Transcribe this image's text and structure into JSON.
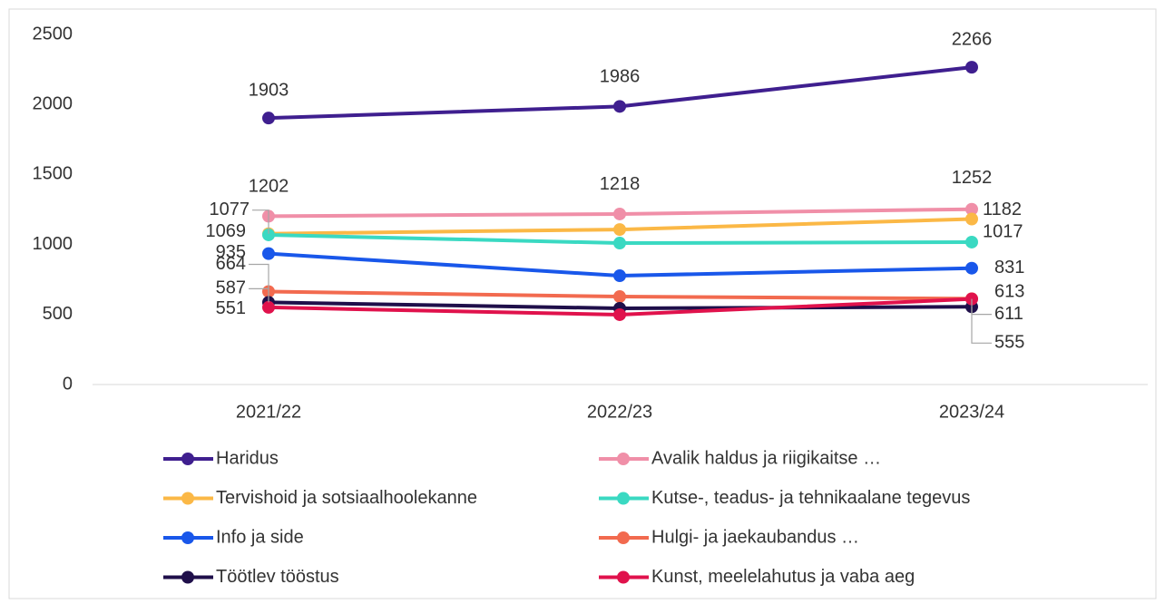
{
  "chart_data": {
    "type": "line",
    "categories": [
      "2021/22",
      "2022/23",
      "2023/24"
    ],
    "ylim": [
      0,
      2500
    ],
    "yticks": [
      0,
      500,
      1000,
      1500,
      2000,
      2500
    ],
    "series": [
      {
        "name": "Haridus",
        "color": "#3f1f8f",
        "values": [
          1903,
          1986,
          2266
        ],
        "value_labels": [
          1903,
          1986,
          2266
        ]
      },
      {
        "name": "Avalik haldus ja riigikaitse …",
        "color": "#f08fa8",
        "values": [
          1202,
          1218,
          1252
        ],
        "value_labels": [
          1202,
          1218,
          1252
        ]
      },
      {
        "name": "Tervishoid ja sotsiaalhoolekanne",
        "color": "#fbb846",
        "values": [
          1077,
          1107,
          1182
        ],
        "value_labels": [
          1077,
          null,
          1182
        ]
      },
      {
        "name": "Kutse-, teadus- ja tehnikaalane tegevus",
        "color": "#3ad9c2",
        "values": [
          1069,
          1010,
          1017
        ],
        "value_labels": [
          1069,
          null,
          1017
        ]
      },
      {
        "name": "Info ja side",
        "color": "#1957ea",
        "values": [
          935,
          777,
          831
        ],
        "value_labels": [
          935,
          null,
          831
        ]
      },
      {
        "name": "Hulgi- ja jaekaubandus …",
        "color": "#f26a4f",
        "values": [
          664,
          628,
          613
        ],
        "value_labels": [
          664,
          null,
          613
        ]
      },
      {
        "name": "Töötlev tööstus",
        "color": "#1f0f4a",
        "values": [
          587,
          544,
          555
        ],
        "value_labels": [
          587,
          null,
          555
        ]
      },
      {
        "name": "Kunst, meelelahutus ja vaba aeg",
        "color": "#e0124c",
        "values": [
          551,
          499,
          611
        ],
        "value_labels": [
          551,
          null,
          611
        ]
      }
    ]
  }
}
